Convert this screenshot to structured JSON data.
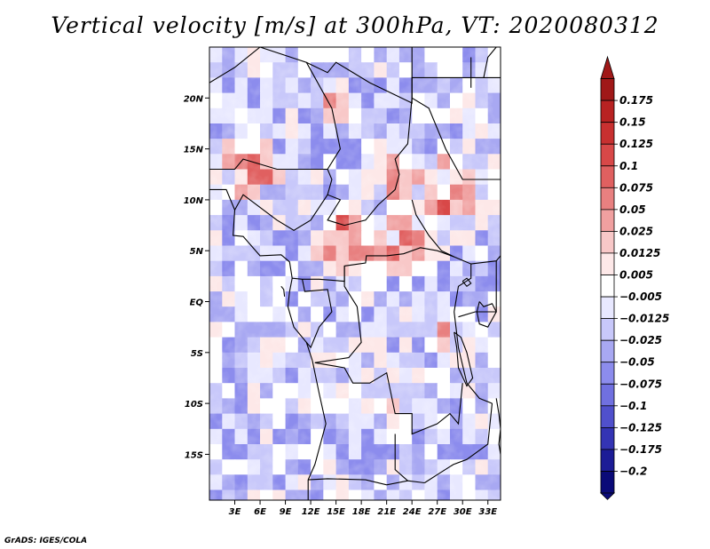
{
  "chart_data": {
    "type": "heatmap",
    "title": "Vertical velocity [m/s] at 300hPa, VT: 2020080312",
    "variable": "Vertical velocity",
    "units": "m/s",
    "level": "300hPa",
    "valid_time": "2020080312",
    "x_ticks": [
      "3E",
      "6E",
      "9E",
      "12E",
      "15E",
      "18E",
      "21E",
      "24E",
      "27E",
      "30E",
      "33E"
    ],
    "x_tick_values": [
      3,
      6,
      9,
      12,
      15,
      18,
      21,
      24,
      27,
      30,
      33
    ],
    "y_ticks": [
      "20N",
      "15N",
      "10N",
      "5N",
      "EQ",
      "5S",
      "10S",
      "15S"
    ],
    "y_tick_values": [
      20,
      15,
      10,
      5,
      0,
      -5,
      -10,
      -15
    ],
    "xlim": [
      0,
      34.5
    ],
    "ylim": [
      -19.5,
      25
    ],
    "colorbar": {
      "labels": [
        "0.175",
        "0.15",
        "0.125",
        "0.1",
        "0.075",
        "0.05",
        "0.025",
        "0.0125",
        "0.005",
        "−0.005",
        "−0.0125",
        "−0.025",
        "−0.05",
        "−0.075",
        "−0.1",
        "−0.125",
        "−0.175",
        "−0.2"
      ],
      "colors": [
        "#a01818",
        "#b82222",
        "#c83030",
        "#d84848",
        "#e06060",
        "#e88080",
        "#f0a0a0",
        "#f8c8c8",
        "#fde8e8",
        "#ffffff",
        "#e8e8ff",
        "#c8c8fa",
        "#a8a8f2",
        "#8c8ced",
        "#7070e0",
        "#5050cc",
        "#3434b4",
        "#1c1c96",
        "#0a0a78"
      ],
      "extend": "both"
    },
    "credit": "GrADS: IGES/COLA"
  }
}
